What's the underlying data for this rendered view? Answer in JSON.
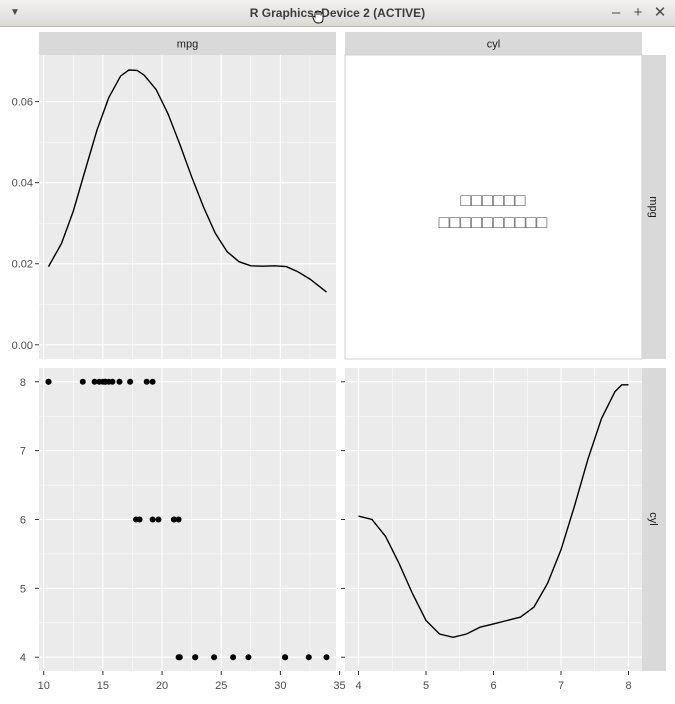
{
  "window": {
    "title": "R Graphics: Device 2 (ACTIVE)",
    "menu_icon": "chevron-down-icon",
    "minimize_icon": "minimize-icon",
    "maximize_icon": "maximize-icon",
    "close_icon": "close-icon"
  },
  "colors": {
    "panel_bg": "#ebebeb",
    "strip_bg": "#d9d9d9",
    "grid": "#ffffff",
    "ink": "#000000",
    "axis_text": "#4d4d4d"
  },
  "chart_data": {
    "type": "pairs",
    "strips": {
      "top": [
        "mpg",
        "cyl"
      ],
      "right": [
        "mpg",
        "cyl"
      ]
    },
    "panels": [
      {
        "id": "mpg-density",
        "type": "line",
        "x": [
          10.4,
          11.5,
          12.5,
          13.5,
          14.5,
          15.5,
          16.5,
          17.2,
          17.9,
          18.5,
          19.5,
          20.5,
          21.5,
          22.5,
          23.5,
          24.5,
          25.5,
          26.5,
          27.5,
          28.5,
          29.5,
          30.5,
          31.5,
          32.5,
          33.9
        ],
        "y": [
          0.0193,
          0.025,
          0.033,
          0.043,
          0.053,
          0.061,
          0.0663,
          0.0678,
          0.0677,
          0.0665,
          0.063,
          0.057,
          0.0495,
          0.0415,
          0.034,
          0.0275,
          0.023,
          0.0205,
          0.0195,
          0.0194,
          0.0195,
          0.0193,
          0.018,
          0.0162,
          0.013
        ],
        "xlim": [
          9.6,
          34.7
        ],
        "ylim": [
          -0.0035,
          0.0715
        ],
        "yticks": [
          "0.00",
          "0.02",
          "0.04",
          "0.06"
        ]
      },
      {
        "id": "cor-placeholder",
        "type": "text",
        "lines": [
          "□□□□□□",
          "□□□□□□□□□□"
        ]
      },
      {
        "id": "mpg-cyl-scatter",
        "type": "scatter",
        "x": [
          21,
          21,
          22.8,
          21.4,
          18.7,
          18.1,
          14.3,
          24.4,
          22.8,
          19.2,
          17.8,
          16.4,
          17.3,
          15.2,
          10.4,
          10.4,
          14.7,
          32.4,
          30.4,
          33.9,
          21.5,
          15.5,
          15.2,
          13.3,
          19.2,
          27.3,
          26,
          30.4,
          15.8,
          19.7,
          15,
          21.4
        ],
        "y": [
          6,
          6,
          4,
          6,
          8,
          6,
          8,
          4,
          4,
          6,
          6,
          8,
          8,
          8,
          8,
          8,
          8,
          4,
          4,
          4,
          4,
          8,
          8,
          8,
          8,
          4,
          4,
          4,
          8,
          6,
          8,
          4
        ],
        "xlim": [
          9.6,
          34.7
        ],
        "ylim": [
          3.8,
          8.2
        ],
        "xticks": [
          "10",
          "15",
          "20",
          "25",
          "30",
          "35"
        ],
        "yticks": [
          "4",
          "5",
          "6",
          "7",
          "8"
        ]
      },
      {
        "id": "cyl-density",
        "type": "line",
        "x": [
          4,
          4.2,
          4.4,
          4.6,
          4.8,
          5,
          5.2,
          5.4,
          5.6,
          5.8,
          6,
          6.2,
          6.4,
          6.6,
          6.8,
          7,
          7.2,
          7.4,
          7.6,
          7.8,
          7.9,
          8
        ],
        "y": [
          0.76,
          0.75,
          0.7,
          0.62,
          0.53,
          0.45,
          0.41,
          0.4,
          0.41,
          0.43,
          0.44,
          0.45,
          0.46,
          0.49,
          0.56,
          0.66,
          0.79,
          0.93,
          1.05,
          1.13,
          1.15,
          1.15
        ],
        "xlim": [
          3.8,
          8.2
        ],
        "ylim": [
          0.3,
          1.2
        ],
        "xticks": [
          "4",
          "5",
          "6",
          "7",
          "8"
        ]
      }
    ]
  }
}
